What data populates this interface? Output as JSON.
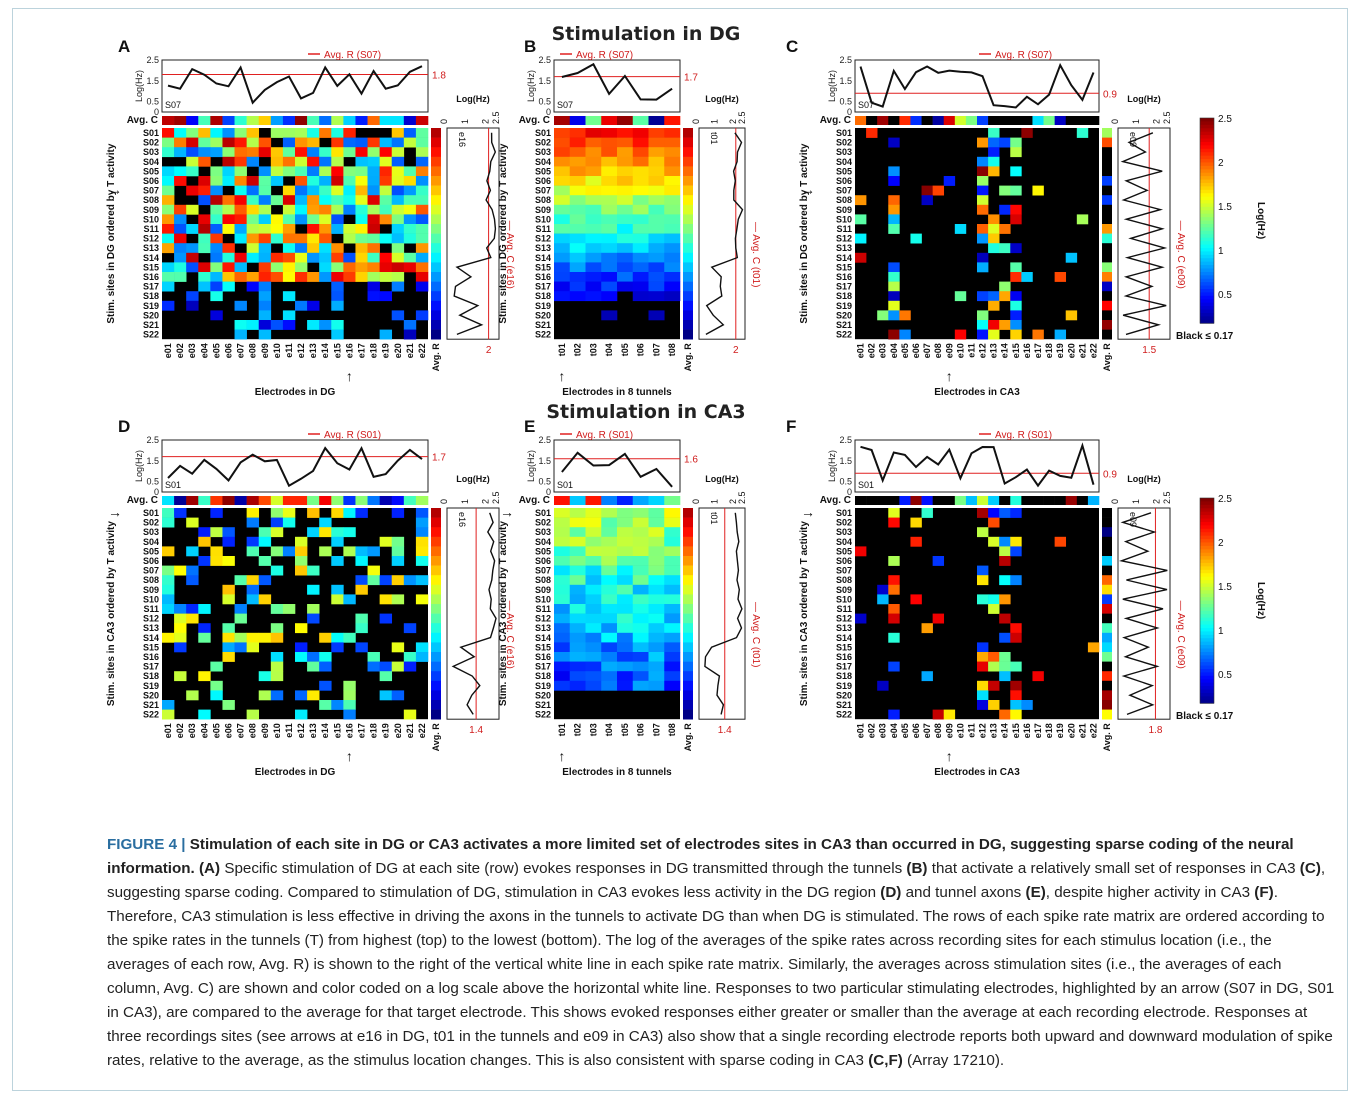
{
  "figure": {
    "section_titles": [
      "Stimulation in DG",
      "Stimulation in CA3"
    ],
    "common": {
      "rows": [
        "S01",
        "S02",
        "S03",
        "S04",
        "S05",
        "S06",
        "S07",
        "S08",
        "S09",
        "S10",
        "S11",
        "S12",
        "S13",
        "S14",
        "S15",
        "S16",
        "S17",
        "S18",
        "S19",
        "S20",
        "S21",
        "S22"
      ],
      "electrodes": [
        "e01",
        "e02",
        "e03",
        "e04",
        "e05",
        "e06",
        "e07",
        "e08",
        "e09",
        "e10",
        "e11",
        "e12",
        "e13",
        "e14",
        "e15",
        "e16",
        "e17",
        "e18",
        "e19",
        "e20",
        "e21",
        "e22"
      ],
      "tunnels": [
        "t01",
        "t02",
        "t03",
        "t04",
        "t05",
        "t06",
        "t07",
        "t08"
      ],
      "avg_c_label": "Avg. C",
      "avg_r_label": "Avg. R",
      "loghz_label": "Log(Hz)",
      "top_yticks": [
        "2.5",
        "2",
        "1.5",
        "1",
        "0.5",
        "0"
      ],
      "side_ticks": [
        "0",
        "1",
        "2",
        "2.5"
      ],
      "colorbar_ticks": [
        "2.5",
        "2",
        "1.5",
        "1",
        "0.5"
      ],
      "colorbar_title": "Log(Hz)",
      "colorbar_black": "Black ≤ 0.17"
    },
    "panels": [
      {
        "letter": "A",
        "legend": "Avg. R (S07)",
        "ref": "1.8",
        "site": "S07",
        "ylabel": "Stim. sites in DG ordered by T activity",
        "xlabel": "Electrodes in DG",
        "side_label": "e16",
        "side_title": "Avg. C (e16)",
        "side_ref": "2",
        "arrow_row": "S07",
        "arrow_col": "e16"
      },
      {
        "letter": "B",
        "legend": "Avg. R (S07)",
        "ref": "1.7",
        "site": "S07",
        "ylabel": "Stim. sites in DG ordered by T activity",
        "xlabel": "Electrodes in 8 tunnels",
        "side_label": "t01",
        "side_title": "Avg. C (t01)",
        "side_ref": "2",
        "arrow_col": "t01"
      },
      {
        "letter": "C",
        "legend": "Avg. R (S07)",
        "ref": "0.9",
        "site": "S07",
        "ylabel": "Stim. sites in DG ordered by T activity",
        "xlabel": "Electrodes in CA3",
        "side_label": "e09",
        "side_title": "Avg. C (e09)",
        "side_ref": "1.5",
        "arrow_row": "S07",
        "arrow_col": "e09"
      },
      {
        "letter": "D",
        "legend": "Avg. R (S01)",
        "ref": "1.7",
        "site": "S01",
        "ylabel": "Stim. sites in CA3 ordered by T activity",
        "xlabel": "Electrodes in DG",
        "side_label": "e16",
        "side_title": "Avg. C (e16)",
        "side_ref": "1.4",
        "arrow_row": "S01",
        "arrow_col": "e16"
      },
      {
        "letter": "E",
        "legend": "Avg. R (S01)",
        "ref": "1.6",
        "site": "S01",
        "ylabel": "Stim. sites in CA3 ordered by T activity",
        "xlabel": "Electrodes in 8 tunnels",
        "side_label": "t01",
        "side_title": "Avg. C (t01)",
        "side_ref": "1.4",
        "arrow_row": "S01",
        "arrow_col": "t01"
      },
      {
        "letter": "F",
        "legend": "Avg. R (S01)",
        "ref": "0.9",
        "site": "S01",
        "ylabel": "Stim. sites in CA3 ordered by T activity",
        "xlabel": "Electrodes in CA3",
        "side_label": "e09",
        "side_title": "Avg. C (e09)",
        "side_ref": "1.8",
        "arrow_row": "S01",
        "arrow_col": "e09"
      }
    ]
  },
  "caption": {
    "label": "FIGURE 4 |",
    "heading": "Stimulation of each site in DG or CA3 activates a more limited set of electrodes sites in CA3 than occurred in DG, suggesting sparse coding of the neural information.",
    "p1": "Specific stimulation of DG at each site (row) evokes responses in DG transmitted through the tunnels",
    "p2": "that activate a relatively small set of responses in CA3",
    "p3": ", suggesting sparse coding. Compared to stimulation of DG, stimulation in CA3 evokes less activity in the DG region",
    "p4": "and tunnel axons",
    "p5": ", despite higher activity in CA3",
    "p6": ". Therefore, CA3 stimulation is less effective in driving the axons in the tunnels to activate DG than when DG is stimulated. The rows of each spike rate matrix are ordered according to the spike rates in the tunnels (T) from highest (top) to the lowest (bottom). The log of the averages of the spike rates across recording sites for each stimulus location (i.e., the averages of each row, Avg. R) is shown to the right of the vertical white line in each spike rate matrix. Similarly, the averages across stimulation sites (i.e., the averages of each column, Avg. C) are shown and color coded on a log scale above the horizontal white line. Responses to two particular stimulating electrodes, highlighted by an arrow (S07 in DG, S01 in CA3), are compared to the average for that target electrode. This shows evoked responses either greater or smaller than the average at each recording electrode. Responses at three recordings sites (see arrows at e16 in DG, t01 in the tunnels and e09 in CA3) also show that a single recording electrode reports both upward and downward modulation of spike rates, relative to the average, as the stimulus location changes. This is also consistent with sparse coding in CA3",
    "p7": "(Array 17210).",
    "refA": "(A)",
    "refB": "(B)",
    "refC": "(C)",
    "refD": "(D)",
    "refE": "(E)",
    "refF": "(F)",
    "refCF": "(C,F)"
  }
}
